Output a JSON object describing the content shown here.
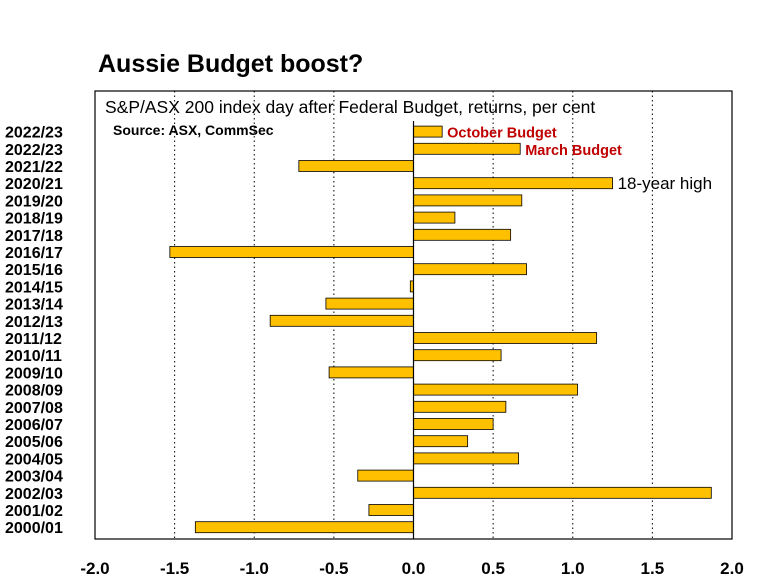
{
  "chart_data": {
    "type": "bar",
    "orientation": "horizontal",
    "title": "Aussie Budget boost?",
    "subtitle": "S&P/ASX 200 index day after Federal Budget, returns, per cent",
    "source": "Source: ASX, CommSec",
    "categories": [
      "2022/23",
      "2022/23",
      "2021/22",
      "2020/21",
      "2019/20",
      "2018/19",
      "2017/18",
      "2016/17",
      "2015/16",
      "2014/15",
      "2013/14",
      "2012/13",
      "2011/12",
      "2010/11",
      "2009/10",
      "2008/09",
      "2007/08",
      "2006/07",
      "2005/06",
      "2004/05",
      "2003/04",
      "2002/03",
      "2001/02",
      "2000/01"
    ],
    "values": [
      0.18,
      0.67,
      -0.72,
      1.25,
      0.68,
      0.26,
      0.61,
      -1.53,
      0.71,
      -0.02,
      -0.55,
      -0.9,
      1.15,
      0.55,
      -0.53,
      1.03,
      0.58,
      0.5,
      0.34,
      0.66,
      -0.35,
      1.87,
      -0.28,
      -1.37
    ],
    "xlim": [
      -2.0,
      2.0
    ],
    "xticks": [
      "-2.0",
      "-1.5",
      "-1.0",
      "-0.5",
      "0.0",
      "0.5",
      "1.0",
      "1.5",
      "2.0"
    ],
    "xtick_values": [
      -2.0,
      -1.5,
      -1.0,
      -0.5,
      0.0,
      0.5,
      1.0,
      1.5,
      2.0
    ],
    "grid": "vertical dotted",
    "bar_color": "#FFC000",
    "annotations": [
      {
        "text": "October Budget",
        "bar_index": 0,
        "color": "#C00000"
      },
      {
        "text": "March Budget",
        "bar_index": 1,
        "color": "#C00000"
      },
      {
        "text": "18-year high",
        "bar_index": 3,
        "color": "#000000"
      }
    ]
  }
}
